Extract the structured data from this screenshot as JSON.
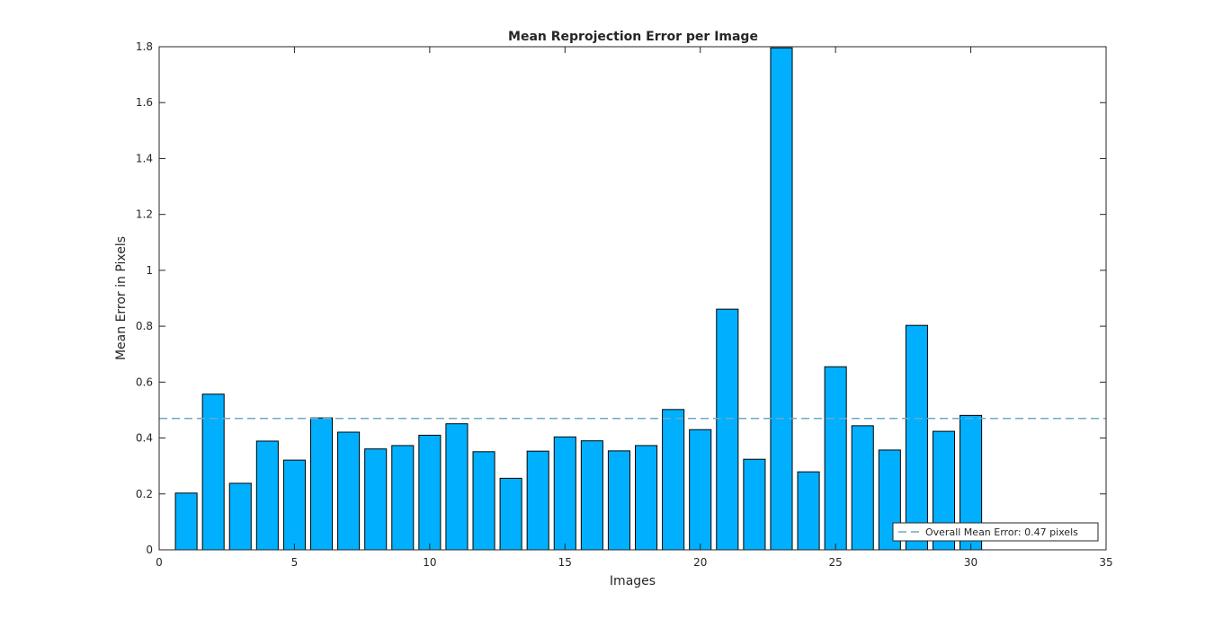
{
  "chart_data": {
    "type": "bar",
    "title": "Mean Reprojection Error per Image",
    "xlabel": "Images",
    "ylabel": "Mean Error in Pixels",
    "xlim": [
      0,
      35
    ],
    "ylim": [
      0,
      1.8
    ],
    "xticks": [
      0,
      5,
      10,
      15,
      20,
      25,
      30,
      35
    ],
    "yticks": [
      0,
      0.2,
      0.4,
      0.6,
      0.8,
      1,
      1.2,
      1.4,
      1.6,
      1.8
    ],
    "x": [
      1,
      2,
      3,
      4,
      5,
      6,
      7,
      8,
      9,
      10,
      11,
      12,
      13,
      14,
      15,
      16,
      17,
      18,
      19,
      20,
      21,
      22,
      23,
      24,
      25,
      26,
      27,
      28,
      29,
      30
    ],
    "values": [
      0.203,
      0.557,
      0.238,
      0.389,
      0.321,
      0.472,
      0.421,
      0.361,
      0.373,
      0.41,
      0.451,
      0.351,
      0.256,
      0.353,
      0.404,
      0.39,
      0.354,
      0.373,
      0.502,
      0.43,
      0.861,
      0.324,
      1.796,
      0.279,
      0.655,
      0.444,
      0.357,
      0.803,
      0.424,
      0.481
    ],
    "bar_color": "#00b0ff",
    "mean_line": {
      "value": 0.47,
      "color": "#6fa8c8",
      "label": "Overall Mean Error: 0.47 pixels"
    },
    "legend_position": "bottom-right",
    "grid": false
  }
}
